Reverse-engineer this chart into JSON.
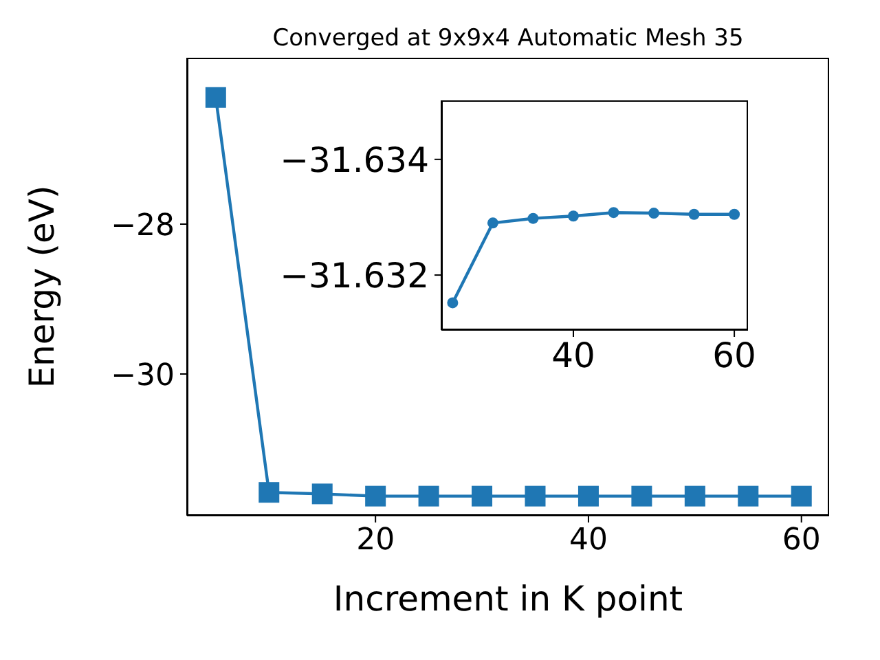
{
  "chart_data": [
    {
      "type": "line",
      "title": "Converged at 9x9x4 Automatic Mesh 35",
      "xlabel": "Increment in K point",
      "ylabel": "Energy (eV)",
      "x": [
        5,
        10,
        15,
        20,
        25,
        30,
        35,
        40,
        45,
        50,
        55,
        60
      ],
      "series": [
        {
          "color": "#1f77b4",
          "values": [
            -26.31,
            -31.58,
            -31.6,
            -31.63,
            -31.63,
            -31.63,
            -31.63,
            -31.63,
            -31.63,
            -31.63,
            -31.63,
            -31.63
          ]
        }
      ],
      "xlim": [
        2.3,
        62.6
      ],
      "ylim": [
        -31.89,
        -25.78
      ],
      "xticks": [
        20,
        40,
        60
      ],
      "yticks": [
        -28,
        -30
      ],
      "marker": "square"
    },
    {
      "type": "line",
      "x": [
        25,
        30,
        35,
        40,
        45,
        50,
        55,
        60
      ],
      "series": [
        {
          "color": "#1f77b4",
          "values": [
            -31.63152,
            -31.6329,
            -31.63298,
            -31.63302,
            -31.63308,
            -31.63307,
            -31.63305,
            -31.63305
          ]
        }
      ],
      "xlim": [
        23.6,
        61.7
      ],
      "ylim": [
        -31.63105,
        -31.63502
      ],
      "xticks": [
        40,
        60
      ],
      "yticks": [
        -31.634,
        -31.632
      ],
      "marker": "circle"
    }
  ]
}
